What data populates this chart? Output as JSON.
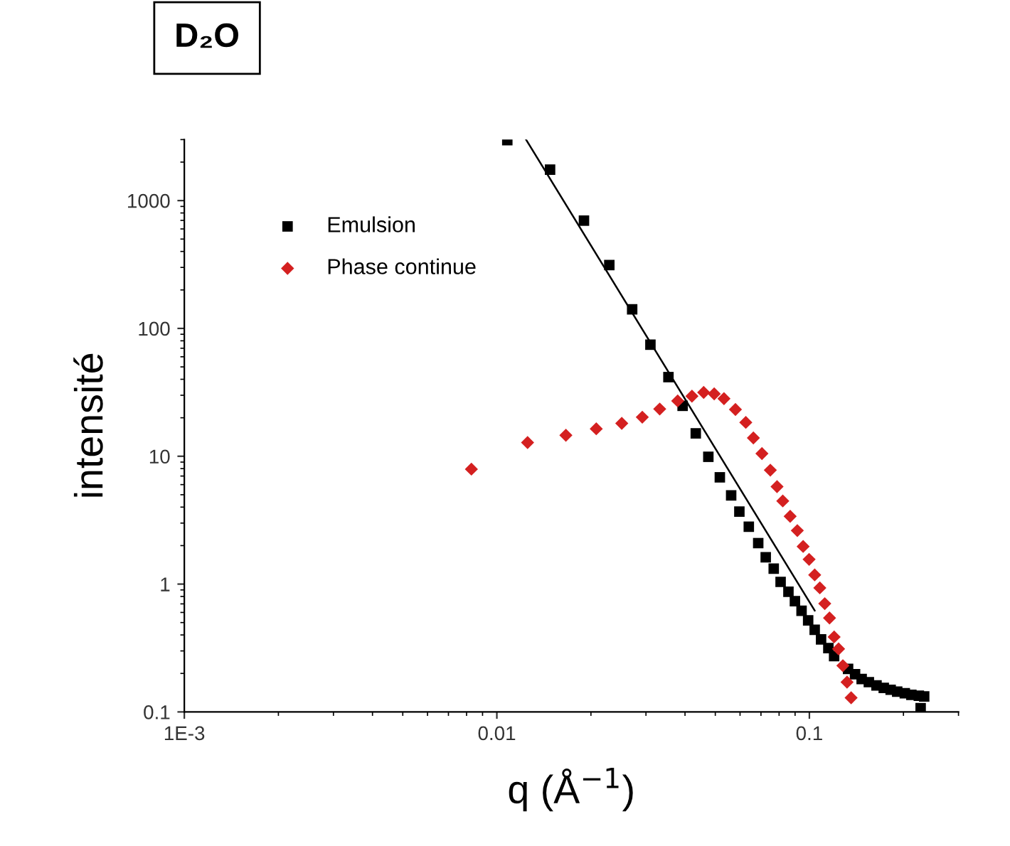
{
  "chart_data": {
    "type": "scatter",
    "title": "D₂O",
    "xlabel": "q (Å$^{−1}$)",
    "ylabel": "intensité",
    "log": "xy",
    "xlim": [
      0.001,
      0.3
    ],
    "ylim": [
      0.1,
      3000
    ],
    "xticks": [
      {
        "value": 0.001,
        "label": "1E-3"
      },
      0.01,
      0.1
    ],
    "yticks": [
      0.1,
      1,
      10,
      100,
      1000
    ],
    "legend": "top left",
    "grid": false,
    "series": [
      {
        "name": "Emulsion",
        "color": "#000000",
        "marker": "square",
        "x": [
          0.0108,
          0.0148,
          0.019,
          0.0229,
          0.0271,
          0.031,
          0.0354,
          0.0393,
          0.0433,
          0.0475,
          0.0517,
          0.0562,
          0.0597,
          0.064,
          0.0686,
          0.0725,
          0.0769,
          0.0809,
          0.0857,
          0.0899,
          0.0944,
          0.0991,
          0.104,
          0.109,
          0.115,
          0.12,
          0.126,
          0.133,
          0.14,
          0.147,
          0.155,
          0.164,
          0.173,
          0.182,
          0.191,
          0.202,
          0.212,
          0.224,
          0.233,
          0.227
        ],
        "values": [
          2970,
          1746,
          697,
          313,
          141,
          74.6,
          41.6,
          24.8,
          15.1,
          9.9,
          6.84,
          4.94,
          3.69,
          2.81,
          2.09,
          1.62,
          1.32,
          1.04,
          0.871,
          0.735,
          0.618,
          0.52,
          0.439,
          0.369,
          0.316,
          0.273,
          null,
          0.217,
          0.197,
          0.181,
          0.171,
          0.161,
          0.154,
          0.149,
          0.144,
          0.14,
          0.136,
          0.134,
          0.132,
          0.107
        ]
      },
      {
        "name": "Phase continue",
        "color": "#d42020",
        "marker": "diamond",
        "x": [
          0.00829,
          0.01254,
          0.01663,
          0.0208,
          0.0251,
          0.0292,
          0.0332,
          0.0379,
          0.0421,
          0.0459,
          0.0496,
          0.0533,
          0.058,
          0.0626,
          0.0662,
          0.0705,
          0.075,
          0.0788,
          0.0822,
          0.0868,
          0.0915,
          0.0955,
          0.0998,
          0.104,
          0.108,
          0.112,
          0.116,
          0.12,
          0.124,
          0.128,
          0.132,
          0.136
        ],
        "values": [
          7.93,
          12.8,
          14.6,
          16.4,
          18.1,
          20.2,
          23.4,
          27.1,
          29.5,
          31.6,
          30.8,
          28.2,
          23.2,
          18.4,
          13.9,
          10.5,
          7.78,
          5.78,
          4.47,
          3.39,
          2.62,
          1.97,
          1.56,
          1.18,
          0.934,
          0.703,
          0.543,
          0.386,
          0.311,
          0.23,
          0.171,
          0.129
        ]
      },
      {
        "type": "line",
        "color": "#000000",
        "line_style": "solid",
        "x": [
          0.0124,
          0.104
        ],
        "values": [
          3000,
          0.62
        ]
      }
    ]
  }
}
